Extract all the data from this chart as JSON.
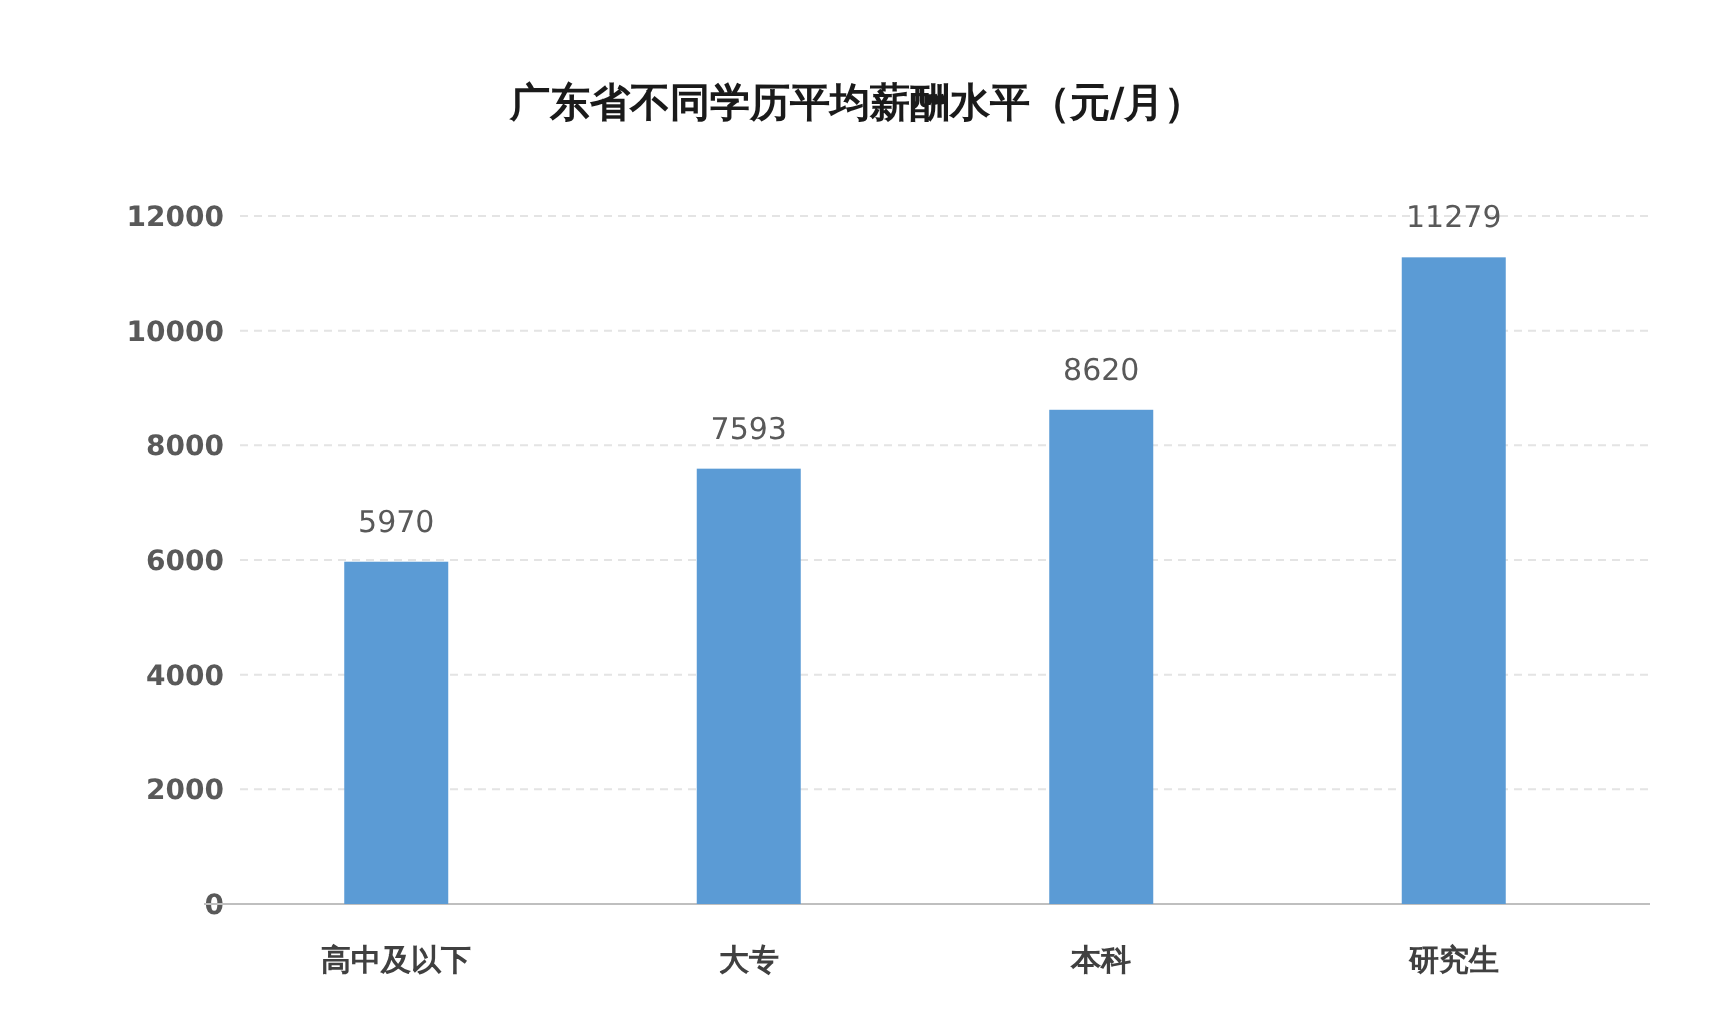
{
  "chart_data": {
    "type": "bar",
    "title": "广东省不同学历平均薪酬水平（元/月）",
    "categories": [
      "高中及以下",
      "大专",
      "本科",
      "研究生"
    ],
    "values": [
      5970,
      7593,
      8620,
      11279
    ],
    "color": "#5b9bd5",
    "ylim": [
      0,
      12000
    ],
    "yticks": [
      0,
      2000,
      4000,
      6000,
      8000,
      10000,
      12000
    ],
    "grid": "y",
    "data_labels": true
  }
}
